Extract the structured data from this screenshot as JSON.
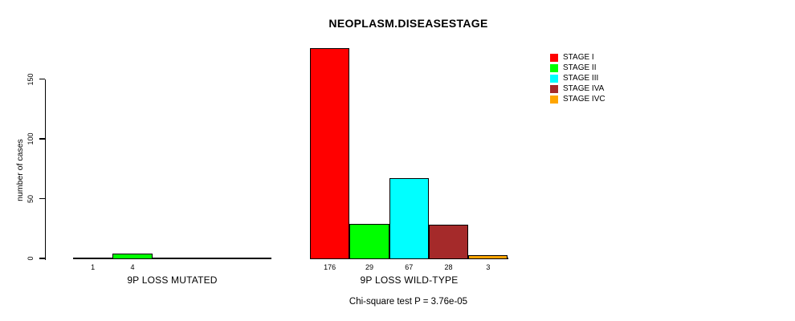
{
  "title": "NEOPLASM.DISEASESTAGE",
  "chart_data": {
    "type": "bar",
    "title": "NEOPLASM.DISEASESTAGE",
    "xlabel": "",
    "ylabel": "number of cases",
    "yticks": [
      0,
      50,
      100,
      150
    ],
    "ytick_labels": [
      "0",
      "50",
      "100",
      "150"
    ],
    "ylim": [
      0,
      176
    ],
    "grid": false,
    "legend_position": "top-right",
    "categories": [
      "STAGE I",
      "STAGE II",
      "STAGE III",
      "STAGE IVA",
      "STAGE IVC"
    ],
    "colors": [
      "#FF0000",
      "#00FF00",
      "#00FFFF",
      "#A52A2A",
      "#FFA500"
    ],
    "groups": [
      {
        "label": "9P LOSS MUTATED",
        "values": [
          1,
          4,
          0,
          0,
          0
        ],
        "bar_labels": [
          "1",
          "4",
          "",
          "",
          ""
        ]
      },
      {
        "label": "9P LOSS WILD-TYPE",
        "values": [
          176,
          29,
          67,
          28,
          3
        ],
        "bar_labels": [
          "176",
          "29",
          "67",
          "28",
          "3"
        ]
      }
    ],
    "legend": [
      {
        "label": "STAGE I",
        "color": "#FF0000"
      },
      {
        "label": "STAGE II",
        "color": "#00FF00"
      },
      {
        "label": "STAGE III",
        "color": "#00FFFF"
      },
      {
        "label": "STAGE IVA",
        "color": "#A52A2A"
      },
      {
        "label": "STAGE IVC",
        "color": "#FFA500"
      }
    ],
    "annotation": "Chi-square test P = 3.76e-05"
  }
}
